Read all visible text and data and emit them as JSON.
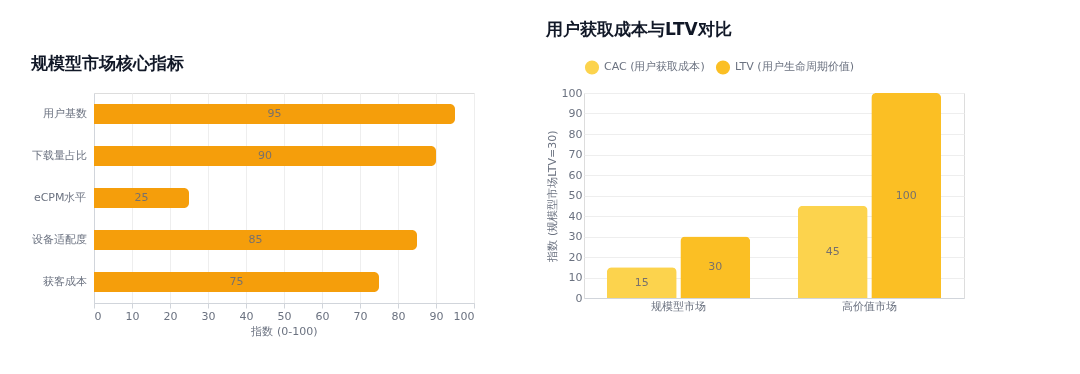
{
  "chart_data": [
    {
      "type": "bar",
      "title": "规模型市场核心指标",
      "orientation": "horizontal",
      "categories": [
        "用户基数",
        "下载量占比",
        "eCPM水平",
        "设备适配度",
        "获客成本"
      ],
      "values": [
        95,
        90,
        25,
        85,
        75
      ],
      "color": "#f59e0b",
      "xlim": [
        0,
        100
      ],
      "xticks": [
        0,
        10,
        20,
        30,
        40,
        50,
        60,
        70,
        80,
        90,
        100
      ],
      "xlabel": "指数 (0-100)",
      "grid": "x",
      "data_labels": true
    },
    {
      "type": "bar",
      "title": "用户获取成本与LTV对比",
      "categories": [
        "规模型市场",
        "高价值市场"
      ],
      "series": [
        {
          "name": "CAC (用户获取成本)",
          "color": "#fcd34d",
          "values": [
            15,
            45
          ]
        },
        {
          "name": "LTV (用户生命周期价值)",
          "color": "#fbbf24",
          "values": [
            30,
            100
          ]
        }
      ],
      "ylim": [
        0,
        100
      ],
      "yticks": [
        0,
        10,
        20,
        30,
        40,
        50,
        60,
        70,
        80,
        90,
        100
      ],
      "ylabel": "指数 (规模型市场LTV=30)",
      "grid": "y",
      "data_labels": true,
      "legend": "top"
    }
  ]
}
